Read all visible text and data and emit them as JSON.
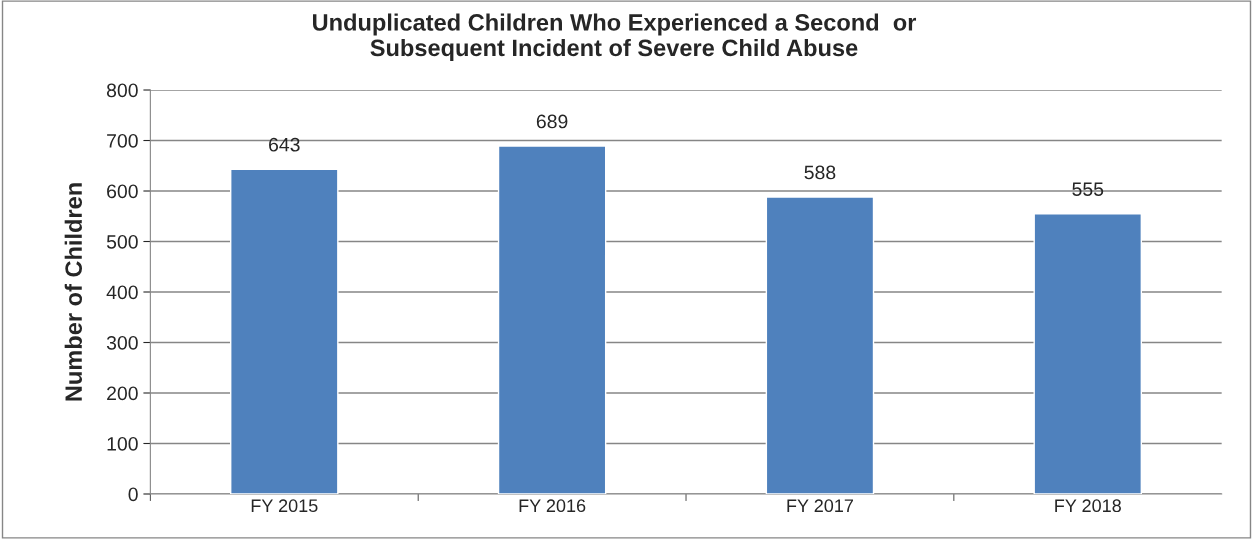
{
  "chart_data": {
    "type": "bar",
    "title": "Unduplicated Children Who Experienced a Second  or\nSubsequent Incident of Severe Child Abuse",
    "ylabel": "Number of Children",
    "categories": [
      "FY 2015",
      "FY 2016",
      "FY 2017",
      "FY 2018"
    ],
    "values": [
      643,
      689,
      588,
      555
    ],
    "color": "#4f81bd",
    "ylim": [
      0,
      800
    ],
    "yticks": [
      0,
      100,
      200,
      300,
      400,
      500,
      600,
      700,
      800
    ],
    "grid": "y",
    "data_labels": true
  }
}
